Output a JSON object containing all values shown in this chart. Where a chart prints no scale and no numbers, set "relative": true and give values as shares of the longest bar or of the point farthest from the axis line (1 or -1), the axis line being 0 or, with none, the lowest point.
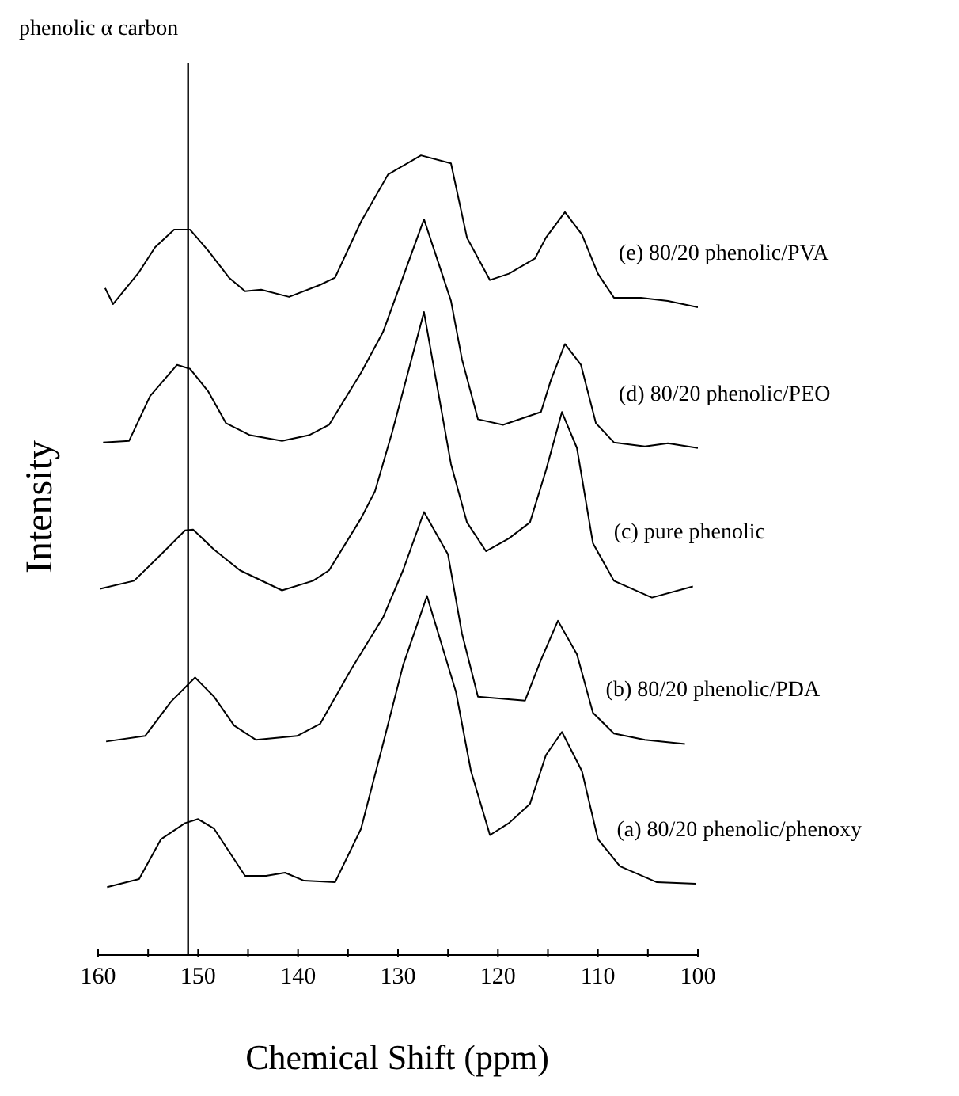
{
  "chart_data": {
    "type": "line",
    "relative": true,
    "xlabel": "Chemical Shift (ppm)",
    "ylabel": "Intensity",
    "xlim": [
      160,
      100
    ],
    "xticks": [
      160,
      {
        "value": 155,
        "label": null
      },
      150,
      {
        "value": 145,
        "label": null
      },
      140,
      {
        "value": 135,
        "label": null
      },
      130,
      {
        "value": 125,
        "label": null
      },
      120,
      {
        "value": 115,
        "label": null
      },
      110,
      {
        "value": 105,
        "label": null
      },
      100
    ],
    "marker": "none",
    "legend": false,
    "ref_lines": [
      {
        "axis": "x",
        "value": 151,
        "label": "phenolic α carbon",
        "color": "#000000"
      }
    ],
    "series": [
      {
        "name": "(e) 80/20 phenolic/PVA",
        "color": "#000000",
        "x": [
          159.3,
          158.5,
          155.9,
          154.3,
          152.4,
          150.8,
          149.0,
          146.9,
          145.3,
          143.7,
          140.9,
          137.8,
          136.3,
          133.7,
          131.0,
          127.7,
          124.7,
          123.1,
          120.8,
          118.9,
          116.3,
          115.2,
          113.3,
          111.6,
          110.0,
          108.4,
          105.7,
          103.0,
          100.0
        ],
        "values": [
          0.834,
          0.814,
          0.854,
          0.885,
          0.907,
          0.907,
          0.881,
          0.847,
          0.83,
          0.832,
          0.823,
          0.838,
          0.847,
          0.917,
          0.976,
          1.0,
          0.99,
          0.897,
          0.844,
          0.852,
          0.871,
          0.897,
          0.929,
          0.901,
          0.852,
          0.822,
          0.822,
          0.818,
          0.81
        ]
      },
      {
        "name": "(d) 80/20 phenolic/PEO",
        "color": "#000000",
        "x": [
          159.5,
          156.9,
          154.8,
          152.1,
          150.8,
          149.0,
          147.2,
          144.8,
          141.6,
          138.9,
          136.9,
          133.7,
          131.5,
          127.4,
          124.7,
          123.6,
          122.0,
          119.5,
          115.7,
          114.7,
          113.3,
          111.7,
          110.2,
          108.4,
          105.3,
          103.0,
          100.0
        ],
        "values": [
          0.641,
          0.643,
          0.699,
          0.738,
          0.733,
          0.705,
          0.665,
          0.65,
          0.643,
          0.65,
          0.663,
          0.728,
          0.779,
          0.92,
          0.818,
          0.745,
          0.67,
          0.663,
          0.679,
          0.719,
          0.764,
          0.738,
          0.665,
          0.641,
          0.636,
          0.64,
          0.634
        ]
      },
      {
        "name": "(c) pure phenolic",
        "color": "#000000",
        "x": [
          159.8,
          156.4,
          153.7,
          151.3,
          150.5,
          148.4,
          145.8,
          141.6,
          138.5,
          136.9,
          133.7,
          132.3,
          130.6,
          127.4,
          124.7,
          123.1,
          121.2,
          118.9,
          116.8,
          115.2,
          113.6,
          112.1,
          110.5,
          108.4,
          104.6,
          100.5
        ],
        "values": [
          0.458,
          0.468,
          0.501,
          0.531,
          0.532,
          0.507,
          0.481,
          0.456,
          0.468,
          0.481,
          0.546,
          0.58,
          0.653,
          0.804,
          0.614,
          0.541,
          0.505,
          0.521,
          0.541,
          0.606,
          0.679,
          0.634,
          0.515,
          0.468,
          0.447,
          0.461
        ]
      },
      {
        "name": "(b) 80/20 phenolic/PDA",
        "color": "#000000",
        "x": [
          159.2,
          155.3,
          152.7,
          150.3,
          148.4,
          146.4,
          144.2,
          140.1,
          137.8,
          134.7,
          131.5,
          129.5,
          127.4,
          125.0,
          123.6,
          122.0,
          117.3,
          115.7,
          114.0,
          112.1,
          110.5,
          108.4,
          105.3,
          101.3
        ],
        "values": [
          0.267,
          0.274,
          0.317,
          0.347,
          0.323,
          0.287,
          0.269,
          0.274,
          0.289,
          0.357,
          0.422,
          0.481,
          0.554,
          0.501,
          0.402,
          0.323,
          0.318,
          0.369,
          0.418,
          0.376,
          0.303,
          0.277,
          0.269,
          0.264
        ]
      },
      {
        "name": "(a) 80/20 phenolic/phenoxy",
        "color": "#000000",
        "x": [
          159.1,
          155.9,
          153.7,
          151.3,
          150.0,
          148.4,
          145.3,
          143.2,
          141.3,
          139.4,
          136.3,
          133.7,
          131.5,
          129.5,
          127.1,
          124.2,
          122.7,
          120.8,
          118.9,
          116.8,
          115.2,
          113.6,
          111.6,
          110.0,
          107.8,
          104.1,
          100.2
        ],
        "values": [
          0.085,
          0.095,
          0.145,
          0.165,
          0.17,
          0.158,
          0.099,
          0.099,
          0.103,
          0.093,
          0.091,
          0.158,
          0.264,
          0.362,
          0.449,
          0.329,
          0.23,
          0.15,
          0.165,
          0.189,
          0.25,
          0.279,
          0.23,
          0.145,
          0.111,
          0.091,
          0.089
        ]
      }
    ]
  }
}
